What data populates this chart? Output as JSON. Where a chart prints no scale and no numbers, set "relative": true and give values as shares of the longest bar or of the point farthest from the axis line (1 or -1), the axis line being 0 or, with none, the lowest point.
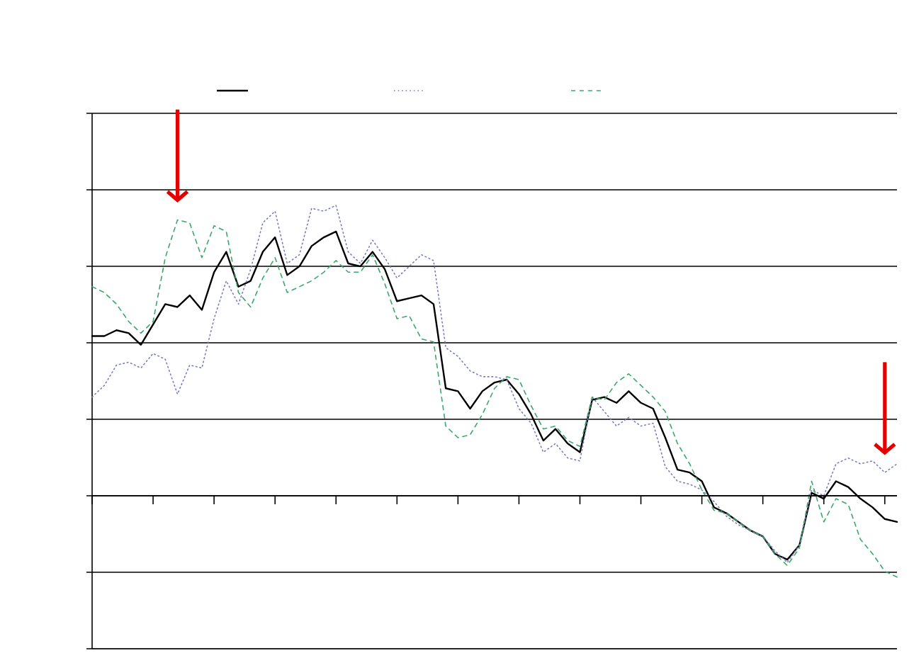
{
  "chart_data": {
    "type": "line",
    "relative": true,
    "grid": "y",
    "categories": [
      null,
      null,
      null,
      null,
      null,
      null,
      null,
      null,
      null,
      null,
      null,
      null,
      null,
      null,
      null,
      null,
      null,
      null,
      null,
      null,
      null,
      null,
      null,
      null,
      null,
      null,
      null,
      null,
      null,
      null,
      null,
      null,
      null,
      null,
      null,
      null,
      null,
      null,
      null,
      null,
      null,
      null,
      null,
      null,
      null,
      null,
      null,
      null,
      null,
      null,
      null,
      null,
      null,
      null,
      null,
      null,
      null,
      null,
      null,
      null,
      null,
      null,
      null,
      null,
      null,
      null,
      null
    ],
    "series": [
      {
        "color": "#000000",
        "line_style": "solid",
        "values": [
          0.55,
          0.55,
          0.57,
          0.56,
          0.52,
          0.59,
          0.66,
          0.65,
          0.69,
          0.64,
          0.77,
          0.84,
          0.72,
          0.74,
          0.84,
          0.89,
          0.76,
          0.79,
          0.86,
          0.89,
          0.91,
          0.8,
          0.79,
          0.84,
          0.78,
          0.67,
          0.68,
          0.69,
          0.66,
          0.37,
          0.36,
          0.3,
          0.36,
          0.39,
          0.4,
          0.35,
          0.28,
          0.19,
          0.23,
          0.18,
          0.15,
          0.33,
          0.34,
          0.32,
          0.36,
          0.32,
          0.3,
          0.2,
          0.09,
          0.08,
          0.05,
          -0.04,
          -0.06,
          -0.09,
          -0.12,
          -0.14,
          -0.2,
          -0.22,
          -0.17,
          0.01,
          -0.01,
          0.05,
          0.03,
          -0.01,
          -0.04,
          -0.08,
          -0.09
        ]
      },
      {
        "color": "#7b7bc0",
        "line_style": "dotted",
        "values": [
          0.34,
          0.38,
          0.45,
          0.46,
          0.44,
          0.49,
          0.47,
          0.35,
          0.45,
          0.44,
          0.61,
          0.74,
          0.66,
          0.78,
          0.94,
          0.98,
          0.8,
          0.83,
          0.99,
          0.98,
          1,
          0.84,
          0.8,
          0.88,
          0.82,
          0.75,
          0.79,
          0.83,
          0.81,
          0.51,
          0.48,
          0.43,
          0.41,
          0.41,
          0.4,
          0.3,
          0.25,
          0.15,
          0.18,
          0.13,
          0.12,
          0.34,
          0.29,
          0.24,
          0.27,
          0.24,
          0.25,
          0.1,
          0.05,
          0.04,
          0.02,
          -0.02,
          -0.07,
          -0.1,
          -0.12,
          -0.14,
          -0.19,
          -0.23,
          -0.17,
          0.02,
          0,
          0.11,
          0.13,
          0.11,
          0.12,
          0.08,
          0.11
        ]
      },
      {
        "color": "#3aa86a",
        "line_style": "dashed",
        "values": [
          0.72,
          0.7,
          0.66,
          0.6,
          0.56,
          0.6,
          0.82,
          0.95,
          0.94,
          0.82,
          0.93,
          0.91,
          0.7,
          0.65,
          0.75,
          0.82,
          0.7,
          0.72,
          0.74,
          0.77,
          0.81,
          0.77,
          0.77,
          0.83,
          0.73,
          0.61,
          0.62,
          0.54,
          0.53,
          0.24,
          0.2,
          0.21,
          0.28,
          0.37,
          0.41,
          0.4,
          0.31,
          0.23,
          0.24,
          0.19,
          0.17,
          0.34,
          0.33,
          0.39,
          0.42,
          0.38,
          0.34,
          0.29,
          0.18,
          0.11,
          0.02,
          -0.05,
          -0.06,
          -0.09,
          -0.12,
          -0.14,
          -0.2,
          -0.24,
          -0.18,
          0.05,
          -0.09,
          -0.01,
          -0.03,
          -0.15,
          -0.2,
          -0.26,
          -0.28
        ]
      }
    ]
  }
}
